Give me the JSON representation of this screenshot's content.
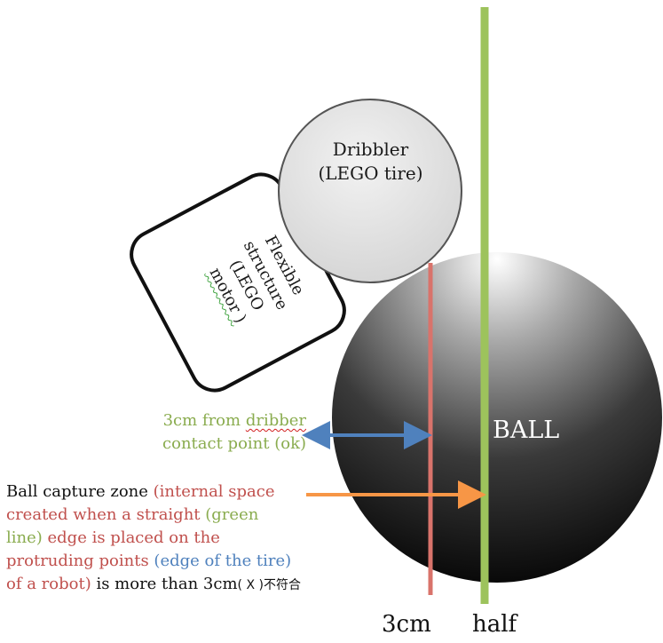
{
  "dribbler": {
    "line1": "Dribbler",
    "line2": "(LEGO tire)"
  },
  "flexible": {
    "line1": "Flexible",
    "line2": "structure",
    "line3": "(LEGO",
    "line4": "motor )"
  },
  "ball": {
    "label": "BALL"
  },
  "ok_note": {
    "part1": "3cm from ",
    "part2": "dribber",
    "part3": "contact point (ok)"
  },
  "zone_note": {
    "s1": "Ball capture zone ",
    "s2": "(internal space",
    "s3": "created when a straight ",
    "s4": "(green",
    "s5": "line)",
    "s6": " edge is placed on the",
    "s7": "protruding points ",
    "s8": "(edge of the tire)",
    "s9": "of a robot)",
    "s10": " is more than 3cm",
    "s11": "( X )不符合"
  },
  "axis_labels": {
    "cm": "3cm",
    "half": "half"
  },
  "colors": {
    "green_line": "#9dc35c",
    "red_line": "#d9736b",
    "blue_arrow": "#4f81bd",
    "orange_arrow": "#f79646",
    "text_green": "#8aac4f",
    "text_red": "#c0504d",
    "text_blue": "#4f81bd"
  }
}
